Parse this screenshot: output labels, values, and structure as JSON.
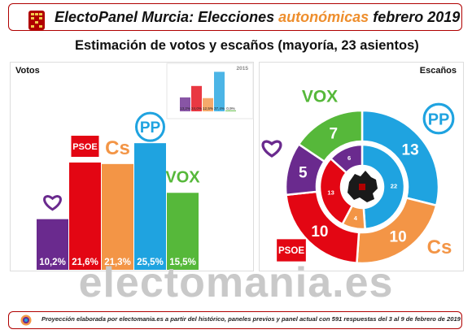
{
  "header": {
    "brand": "ElectoPanel Murcia",
    "colon": ":",
    "elections": "Elecciones",
    "type": "autonómicas",
    "date": "febrero 2019"
  },
  "subtitle": "Estimación de votos y escaños (mayoría, 23 asientos)",
  "left_label": "Votos",
  "right_label": "Escaños",
  "watermark": "electomania.es",
  "footer": "Proyección elaborada por electomania.es a partir del histórico, paneles previos y panel actual con 591 respuestas del 3 al 9 de febrero de 2019",
  "colors": {
    "podemos": "#6a2a8e",
    "psoe": "#e30613",
    "cs": "#f39546",
    "pp": "#1fa3e0",
    "vox": "#56b83a",
    "brand_red": "#b00000",
    "accent_orange": "#ee8e2d"
  },
  "logos": {
    "podemos": "heart-icon",
    "psoe": "PSOE",
    "cs": "Cs",
    "pp": "PP",
    "vox": "VOX"
  },
  "chart_data": [
    {
      "type": "bar",
      "title": "Votos",
      "categories": [
        "Podemos",
        "PSOE",
        "Cs",
        "PP",
        "VOX"
      ],
      "values": [
        10.2,
        21.6,
        21.3,
        25.5,
        15.5
      ],
      "value_labels": [
        "10,2%",
        "21,6%",
        "21,3%",
        "25,5%",
        "15,5%"
      ],
      "ylim": [
        0,
        27
      ]
    },
    {
      "type": "bar",
      "title": "2015",
      "categories": [
        "Podemos",
        "PSOE",
        "Cs",
        "PP",
        "VOX"
      ],
      "values": [
        13.2,
        24.0,
        12.5,
        37.4,
        0.9
      ],
      "value_labels": [
        "13,2%",
        "24,0%",
        "12,5%",
        "37,4%",
        "0,9%"
      ],
      "ylim": [
        0,
        40
      ]
    },
    {
      "type": "pie",
      "title": "Escaños",
      "ring": "outer",
      "categories": [
        "PP",
        "Cs",
        "PSOE",
        "Podemos",
        "VOX"
      ],
      "values": [
        13,
        10,
        10,
        5,
        7
      ]
    },
    {
      "type": "pie",
      "title": "2015",
      "ring": "inner",
      "categories": [
        "PP",
        "Cs",
        "PSOE",
        "Podemos",
        "VOX"
      ],
      "values": [
        22,
        4,
        13,
        6,
        0
      ]
    }
  ]
}
